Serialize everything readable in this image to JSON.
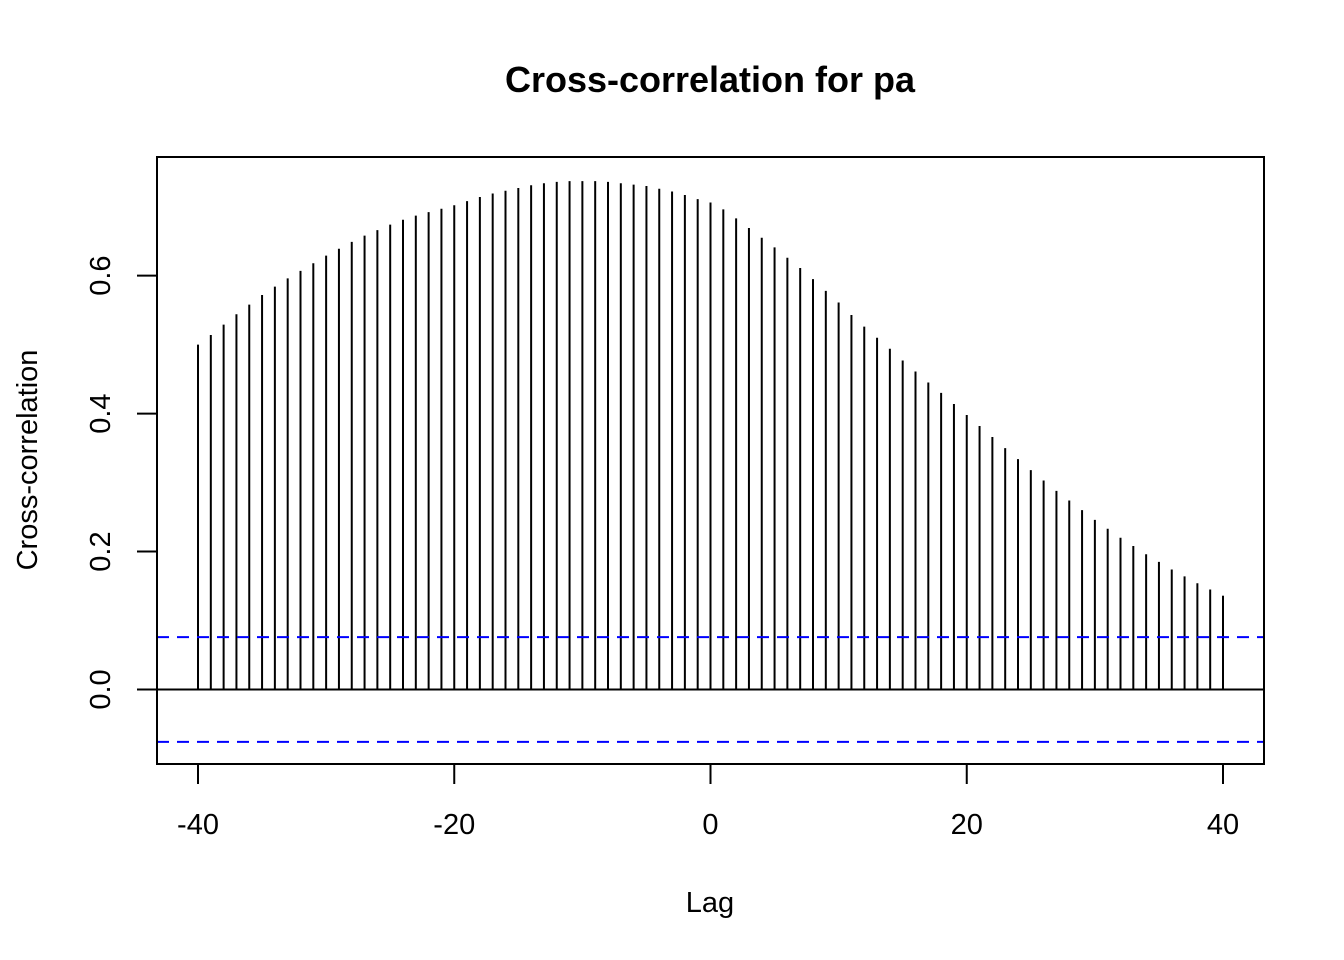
{
  "chart_data": {
    "type": "bar",
    "title": "Cross-correlation for pa",
    "xlabel": "Lag",
    "ylabel": "Cross-correlation",
    "xlim": [
      -43.2,
      43.2
    ],
    "ylim": [
      -0.108,
      0.772
    ],
    "x_ticks": [
      -40,
      -20,
      0,
      20,
      40
    ],
    "x_tick_labels": [
      "-40",
      "-20",
      "0",
      "20",
      "40"
    ],
    "y_ticks": [
      0.0,
      0.2,
      0.4,
      0.6
    ],
    "y_tick_labels": [
      "0.0",
      "0.2",
      "0.4",
      "0.6"
    ],
    "confidence_bound": 0.076,
    "grid": false,
    "legend": "none",
    "colors": {
      "bars": "#000000",
      "confidence": "#0000ff",
      "zero_line": "#000000",
      "frame": "#000000"
    },
    "x": [
      -40,
      -39,
      -38,
      -37,
      -36,
      -35,
      -34,
      -33,
      -32,
      -31,
      -30,
      -29,
      -28,
      -27,
      -26,
      -25,
      -24,
      -23,
      -22,
      -21,
      -20,
      -19,
      -18,
      -17,
      -16,
      -15,
      -14,
      -13,
      -12,
      -11,
      -10,
      -9,
      -8,
      -7,
      -6,
      -5,
      -4,
      -3,
      -2,
      -1,
      0,
      1,
      2,
      3,
      4,
      5,
      6,
      7,
      8,
      9,
      10,
      11,
      12,
      13,
      14,
      15,
      16,
      17,
      18,
      19,
      20,
      21,
      22,
      23,
      24,
      25,
      26,
      27,
      28,
      29,
      30,
      31,
      32,
      33,
      34,
      35,
      36,
      37,
      38,
      39,
      40
    ],
    "values": [
      0.5,
      0.514,
      0.529,
      0.544,
      0.558,
      0.572,
      0.584,
      0.596,
      0.607,
      0.618,
      0.629,
      0.639,
      0.649,
      0.658,
      0.666,
      0.674,
      0.681,
      0.687,
      0.692,
      0.697,
      0.702,
      0.708,
      0.714,
      0.719,
      0.723,
      0.727,
      0.731,
      0.734,
      0.736,
      0.737,
      0.737,
      0.737,
      0.736,
      0.734,
      0.732,
      0.73,
      0.726,
      0.722,
      0.717,
      0.711,
      0.706,
      0.696,
      0.683,
      0.669,
      0.655,
      0.641,
      0.626,
      0.611,
      0.595,
      0.578,
      0.561,
      0.543,
      0.526,
      0.51,
      0.494,
      0.477,
      0.461,
      0.445,
      0.43,
      0.414,
      0.398,
      0.382,
      0.366,
      0.35,
      0.334,
      0.318,
      0.303,
      0.288,
      0.274,
      0.26,
      0.246,
      0.233,
      0.22,
      0.208,
      0.196,
      0.185,
      0.174,
      0.164,
      0.154,
      0.145,
      0.136
    ]
  }
}
